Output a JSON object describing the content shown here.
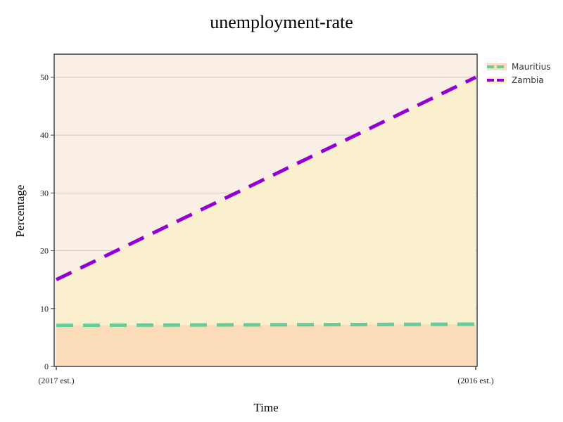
{
  "chart_data": {
    "type": "area",
    "title": "unemployment-rate",
    "xlabel": "Time",
    "ylabel": "Percentage",
    "categories": [
      "(2017 est.)",
      "(2016 est.)"
    ],
    "ylim": [
      0,
      54
    ],
    "yticks": [
      0,
      10,
      20,
      30,
      40,
      50
    ],
    "grid": true,
    "legend_position": "top-right",
    "series": [
      {
        "name": "Mauritius",
        "values": [
          7.1,
          7.3
        ],
        "color": "#66cc99",
        "fill": "#fcdcb8",
        "dash": "dashed"
      },
      {
        "name": "Zambia",
        "values": [
          15,
          50
        ],
        "color": "#9400d3",
        "fill": "#faf0cd",
        "dash": "dashed"
      }
    ],
    "colors": {
      "plot_background": "#f9efe6",
      "grid": "#d0c6c0",
      "axis": "#444444"
    }
  }
}
